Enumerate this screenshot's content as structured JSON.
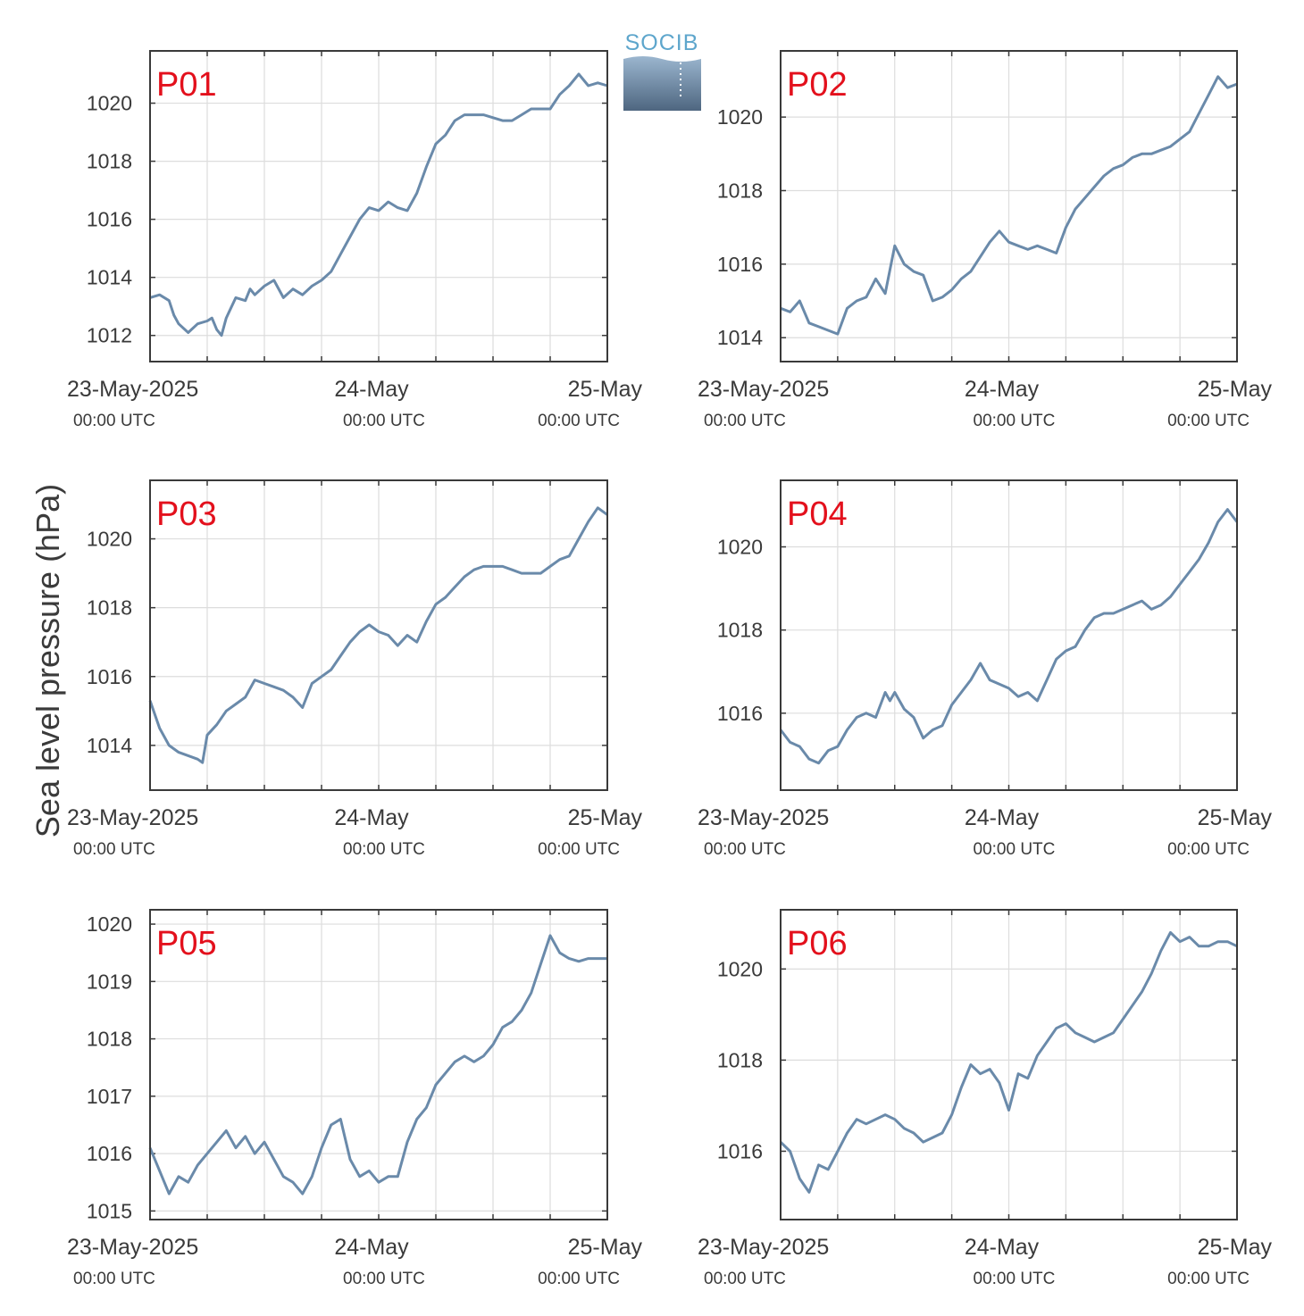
{
  "logo": {
    "text": "SOCIB"
  },
  "chart_data": {
    "type": "line",
    "ylabel": "Sea level pressure (hPa)",
    "line_color": "#6a8aaa",
    "title_color": "#e3101c",
    "grid": true,
    "x_ticks": [
      {
        "date": "23-May-2025",
        "sub": "00:00 UTC",
        "t": 0
      },
      {
        "date": "24-May",
        "sub": "00:00 UTC",
        "t": 24
      },
      {
        "date": "25-May",
        "sub": "00:00 UTC",
        "t": 48
      }
    ],
    "x_units": "hours since 23-May-2025 00:00 UTC",
    "xlim": [
      0,
      48
    ],
    "panels": [
      {
        "title": "P01",
        "ylim": [
          1011.1,
          1021.8
        ],
        "yticks": [
          1012,
          1014,
          1016,
          1018,
          1020
        ],
        "x": [
          0,
          1,
          2,
          2.5,
          3,
          4,
          5,
          6,
          6.5,
          7,
          7.5,
          8,
          9,
          10,
          10.5,
          11,
          12,
          13,
          14,
          15,
          16,
          17,
          18,
          19,
          20,
          21,
          22,
          23,
          24,
          25,
          26,
          27,
          28,
          29,
          30,
          31,
          32,
          33,
          34,
          35,
          36,
          37,
          38,
          39,
          40,
          41,
          42,
          43,
          44,
          45,
          46,
          47,
          48
        ],
        "y": [
          1013.3,
          1013.4,
          1013.2,
          1012.7,
          1012.4,
          1012.1,
          1012.4,
          1012.5,
          1012.6,
          1012.2,
          1012.0,
          1012.6,
          1013.3,
          1013.2,
          1013.6,
          1013.4,
          1013.7,
          1013.9,
          1013.3,
          1013.6,
          1013.4,
          1013.7,
          1013.9,
          1014.2,
          1014.8,
          1015.4,
          1016.0,
          1016.4,
          1016.3,
          1016.6,
          1016.4,
          1016.3,
          1016.9,
          1017.8,
          1018.6,
          1018.9,
          1019.4,
          1019.6,
          1019.6,
          1019.6,
          1019.5,
          1019.4,
          1019.4,
          1019.6,
          1019.8,
          1019.8,
          1019.8,
          1020.3,
          1020.6,
          1021.0,
          1020.6,
          1020.7,
          1020.6
        ]
      },
      {
        "title": "P02",
        "ylim": [
          1013.35,
          1021.8
        ],
        "yticks": [
          1014,
          1016,
          1018,
          1020
        ],
        "x": [
          0,
          1,
          2,
          3,
          4,
          5,
          6,
          7,
          8,
          9,
          10,
          11,
          12,
          13,
          14,
          15,
          16,
          17,
          18,
          19,
          20,
          21,
          22,
          23,
          24,
          25,
          26,
          27,
          28,
          29,
          30,
          31,
          32,
          33,
          34,
          35,
          36,
          37,
          38,
          39,
          40,
          41,
          42,
          43,
          44,
          45,
          46,
          47,
          48
        ],
        "y": [
          1014.8,
          1014.7,
          1015.0,
          1014.4,
          1014.3,
          1014.2,
          1014.1,
          1014.8,
          1015.0,
          1015.1,
          1015.6,
          1015.2,
          1016.5,
          1016.0,
          1015.8,
          1015.7,
          1015.0,
          1015.1,
          1015.3,
          1015.6,
          1015.8,
          1016.2,
          1016.6,
          1016.9,
          1016.6,
          1016.5,
          1016.4,
          1016.5,
          1016.4,
          1016.3,
          1017.0,
          1017.5,
          1017.8,
          1018.1,
          1018.4,
          1018.6,
          1018.7,
          1018.9,
          1019.0,
          1019.0,
          1019.1,
          1019.2,
          1019.4,
          1019.6,
          1020.1,
          1020.6,
          1021.1,
          1020.8,
          1020.9
        ]
      },
      {
        "title": "P03",
        "ylim": [
          1012.7,
          1021.7
        ],
        "yticks": [
          1014,
          1016,
          1018,
          1020
        ],
        "x": [
          0,
          1,
          2,
          3,
          4,
          5,
          5.5,
          6,
          7,
          8,
          9,
          10,
          11,
          12,
          13,
          14,
          15,
          16,
          17,
          18,
          19,
          20,
          21,
          22,
          23,
          24,
          25,
          26,
          27,
          28,
          29,
          30,
          31,
          32,
          33,
          34,
          35,
          36,
          37,
          38,
          39,
          40,
          41,
          42,
          43,
          44,
          45,
          46,
          47,
          48
        ],
        "y": [
          1015.3,
          1014.5,
          1014.0,
          1013.8,
          1013.7,
          1013.6,
          1013.5,
          1014.3,
          1014.6,
          1015.0,
          1015.2,
          1015.4,
          1015.9,
          1015.8,
          1015.7,
          1015.6,
          1015.4,
          1015.1,
          1015.8,
          1016.0,
          1016.2,
          1016.6,
          1017.0,
          1017.3,
          1017.5,
          1017.3,
          1017.2,
          1016.9,
          1017.2,
          1017.0,
          1017.6,
          1018.1,
          1018.3,
          1018.6,
          1018.9,
          1019.1,
          1019.2,
          1019.2,
          1019.2,
          1019.1,
          1019.0,
          1019.0,
          1019.0,
          1019.2,
          1019.4,
          1019.5,
          1020.0,
          1020.5,
          1020.9,
          1020.7
        ]
      },
      {
        "title": "P04",
        "ylim": [
          1014.15,
          1021.6
        ],
        "yticks": [
          1016,
          1018,
          1020
        ],
        "x": [
          0,
          1,
          2,
          3,
          4,
          5,
          6,
          7,
          8,
          9,
          10,
          11,
          11.5,
          12,
          13,
          14,
          15,
          16,
          17,
          18,
          19,
          20,
          21,
          22,
          23,
          24,
          25,
          26,
          27,
          28,
          29,
          30,
          31,
          32,
          33,
          34,
          35,
          36,
          37,
          38,
          39,
          40,
          41,
          42,
          43,
          44,
          45,
          46,
          47,
          48
        ],
        "y": [
          1015.6,
          1015.3,
          1015.2,
          1014.9,
          1014.8,
          1015.1,
          1015.2,
          1015.6,
          1015.9,
          1016.0,
          1015.9,
          1016.5,
          1016.3,
          1016.5,
          1016.1,
          1015.9,
          1015.4,
          1015.6,
          1015.7,
          1016.2,
          1016.5,
          1016.8,
          1017.2,
          1016.8,
          1016.7,
          1016.6,
          1016.4,
          1016.5,
          1016.3,
          1016.8,
          1017.3,
          1017.5,
          1017.6,
          1018.0,
          1018.3,
          1018.4,
          1018.4,
          1018.5,
          1018.6,
          1018.7,
          1018.5,
          1018.6,
          1018.8,
          1019.1,
          1019.4,
          1019.7,
          1020.1,
          1020.6,
          1020.9,
          1020.6
        ]
      },
      {
        "title": "P05",
        "ylim": [
          1014.85,
          1020.25
        ],
        "yticks": [
          1015,
          1016,
          1017,
          1018,
          1019,
          1020
        ],
        "x": [
          0,
          1,
          2,
          3,
          4,
          5,
          6,
          7,
          8,
          9,
          10,
          11,
          12,
          13,
          14,
          15,
          16,
          17,
          18,
          19,
          20,
          21,
          22,
          23,
          24,
          25,
          26,
          27,
          28,
          29,
          30,
          31,
          32,
          33,
          34,
          35,
          36,
          37,
          38,
          39,
          40,
          41,
          42,
          43,
          44,
          45,
          46,
          47,
          48
        ],
        "y": [
          1016.1,
          1015.7,
          1015.3,
          1015.6,
          1015.5,
          1015.8,
          1016.0,
          1016.2,
          1016.4,
          1016.1,
          1016.3,
          1016.0,
          1016.2,
          1015.9,
          1015.6,
          1015.5,
          1015.3,
          1015.6,
          1016.1,
          1016.5,
          1016.6,
          1015.9,
          1015.6,
          1015.7,
          1015.5,
          1015.6,
          1015.6,
          1016.2,
          1016.6,
          1016.8,
          1017.2,
          1017.4,
          1017.6,
          1017.7,
          1017.6,
          1017.7,
          1017.9,
          1018.2,
          1018.3,
          1018.5,
          1018.8,
          1019.3,
          1019.8,
          1019.5,
          1019.4,
          1019.35,
          1019.4,
          1019.4,
          1019.4
        ]
      },
      {
        "title": "P06",
        "ylim": [
          1014.5,
          1021.3
        ],
        "yticks": [
          1016,
          1018,
          1020
        ],
        "x": [
          0,
          1,
          2,
          3,
          4,
          5,
          6,
          7,
          8,
          9,
          10,
          11,
          12,
          13,
          14,
          15,
          16,
          17,
          18,
          19,
          20,
          21,
          22,
          23,
          24,
          25,
          26,
          27,
          28,
          29,
          30,
          31,
          32,
          33,
          34,
          35,
          36,
          37,
          38,
          39,
          40,
          41,
          42,
          43,
          44,
          45,
          46,
          47,
          48
        ],
        "y": [
          1016.2,
          1016.0,
          1015.4,
          1015.1,
          1015.7,
          1015.6,
          1016.0,
          1016.4,
          1016.7,
          1016.6,
          1016.7,
          1016.8,
          1016.7,
          1016.5,
          1016.4,
          1016.2,
          1016.3,
          1016.4,
          1016.8,
          1017.4,
          1017.9,
          1017.7,
          1017.8,
          1017.5,
          1016.9,
          1017.7,
          1017.6,
          1018.1,
          1018.4,
          1018.7,
          1018.8,
          1018.6,
          1018.5,
          1018.4,
          1018.5,
          1018.6,
          1018.9,
          1019.2,
          1019.5,
          1019.9,
          1020.4,
          1020.8,
          1020.6,
          1020.7,
          1020.5,
          1020.5,
          1020.6,
          1020.6,
          1020.5
        ]
      }
    ]
  }
}
